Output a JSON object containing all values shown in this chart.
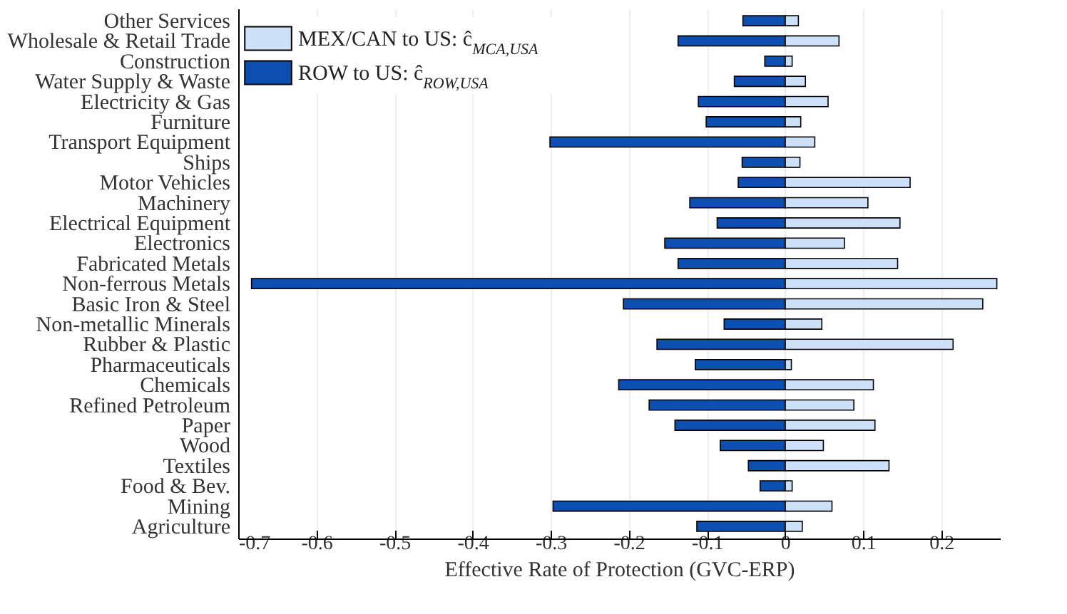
{
  "chart_data": {
    "type": "bar",
    "orientation": "horizontal",
    "xlabel": "Effective Rate of Protection (GVC-ERP)",
    "categories": [
      "Other Services",
      "Wholesale & Retail Trade",
      "Construction",
      "Water Supply & Waste",
      "Electricity & Gas",
      "Furniture",
      "Transport Equipment",
      "Ships",
      "Motor Vehicles",
      "Machinery",
      "Electrical Equipment",
      "Electronics",
      "Fabricated Metals",
      "Non-ferrous Metals",
      "Basic Iron & Steel",
      "Non-metallic Minerals",
      "Rubber & Plastic",
      "Pharmaceuticals",
      "Chemicals",
      "Refined Petroleum",
      "Paper",
      "Wood",
      "Textiles",
      "Food & Bev.",
      "Mining",
      "Agriculture"
    ],
    "series": [
      {
        "name": "MEX/CAN to US: ĉ$_{MCA,USA}$",
        "color": "#cce0f8",
        "values": [
          0.017,
          0.069,
          0.009,
          0.026,
          0.055,
          0.02,
          0.038,
          0.019,
          0.16,
          0.106,
          0.147,
          0.076,
          0.144,
          0.271,
          0.253,
          0.047,
          0.215,
          0.008,
          0.113,
          0.088,
          0.115,
          0.049,
          0.133,
          0.009,
          0.06,
          0.022
        ]
      },
      {
        "name": "ROW to US: ĉ$_{ROW,USA}$",
        "color": "#0d4fb0",
        "values": [
          -0.054,
          -0.137,
          -0.026,
          -0.065,
          -0.111,
          -0.101,
          -0.301,
          -0.055,
          -0.06,
          -0.122,
          -0.087,
          -0.154,
          -0.137,
          -0.683,
          -0.207,
          -0.078,
          -0.164,
          -0.115,
          -0.213,
          -0.174,
          -0.141,
          -0.083,
          -0.047,
          -0.032,
          -0.297,
          -0.113
        ]
      }
    ],
    "xlim": [
      -0.7,
      0.275
    ],
    "xticks": [
      -0.7,
      -0.6,
      -0.5,
      -0.4,
      -0.3,
      -0.2,
      -0.1,
      0,
      0.1,
      0.2
    ],
    "grid": "x",
    "legend": "top left",
    "stacked": true
  }
}
